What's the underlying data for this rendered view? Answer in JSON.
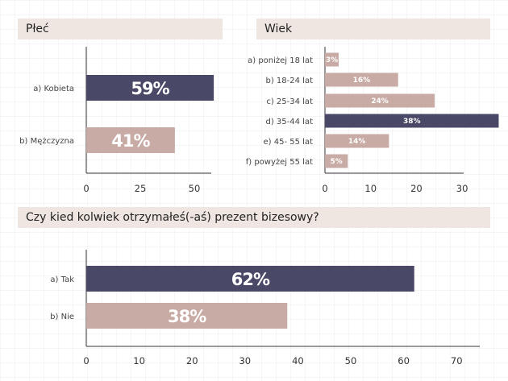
{
  "colors": {
    "dark": "#494866",
    "light": "#c8aba5",
    "header": "#f0e6e1",
    "axis": "#333333"
  },
  "chart_data": [
    {
      "type": "bar",
      "title": "Płeć",
      "orientation": "horizontal",
      "categories": [
        "a) Kobieta",
        "b) Mężczyzna"
      ],
      "values": [
        59,
        41
      ],
      "value_labels": [
        "59%",
        "41%"
      ],
      "highlight": [
        true,
        false
      ],
      "xlim": [
        0,
        60
      ],
      "xticks": [
        0,
        25,
        50
      ]
    },
    {
      "type": "bar",
      "title": "Wiek",
      "orientation": "horizontal",
      "categories": [
        "a) poniżej 18 lat",
        "b) 18-24 lat",
        "c) 25-34 lat",
        "d) 35-44 lat",
        "e) 45- 55 lat",
        "f) powyżej 55 lat"
      ],
      "values": [
        3,
        16,
        24,
        38,
        14,
        5
      ],
      "value_labels": [
        "3%",
        "16%",
        "24%",
        "38%",
        "14%",
        "5%"
      ],
      "highlight": [
        false,
        false,
        false,
        true,
        false,
        false
      ],
      "xlim": [
        0,
        30
      ],
      "xticks": [
        0,
        10,
        20,
        30
      ]
    },
    {
      "type": "bar",
      "title": "Czy kied kolwiek otrzymałeś(-aś) prezent bizesowy?",
      "orientation": "horizontal",
      "categories": [
        "a) Tak",
        "b) Nie"
      ],
      "values": [
        62,
        38
      ],
      "value_labels": [
        "62%",
        "38%"
      ],
      "highlight": [
        true,
        false
      ],
      "xlim": [
        0,
        70
      ],
      "xticks": [
        0,
        10,
        20,
        30,
        40,
        50,
        60,
        70
      ]
    }
  ]
}
